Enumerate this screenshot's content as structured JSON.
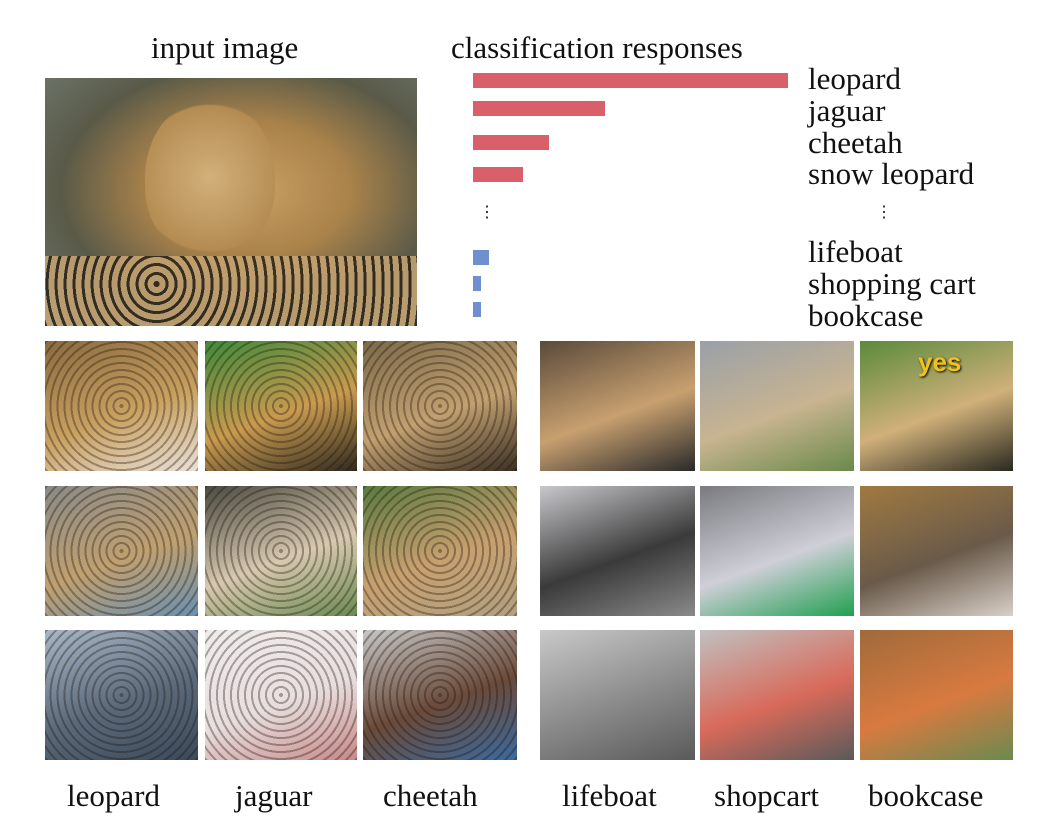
{
  "headings": {
    "input": "input image",
    "responses": "classification responses"
  },
  "chart_data": {
    "type": "bar",
    "orientation": "horizontal",
    "title": "classification responses",
    "categories": [
      "leopard",
      "jaguar",
      "cheetah",
      "snow leopard",
      "lifeboat",
      "shopping cart",
      "bookcase"
    ],
    "values": [
      1.0,
      0.42,
      0.24,
      0.16,
      0.05,
      0.025,
      0.025
    ],
    "colors": [
      "#d9606b",
      "#d9606b",
      "#d9606b",
      "#d9606b",
      "#6f8fd0",
      "#6f8fd0",
      "#6f8fd0"
    ],
    "ellipsis": "⋮",
    "axis_visible": false
  },
  "columns": [
    "leopard",
    "jaguar",
    "cheetah",
    "lifeboat",
    "shopcart",
    "bookcase"
  ],
  "images": {
    "answer_overlay": "yes"
  },
  "colors": {
    "bar_high": "#d9606b",
    "bar_low": "#6f8fd0",
    "overlay_text": "#f2c21b"
  }
}
